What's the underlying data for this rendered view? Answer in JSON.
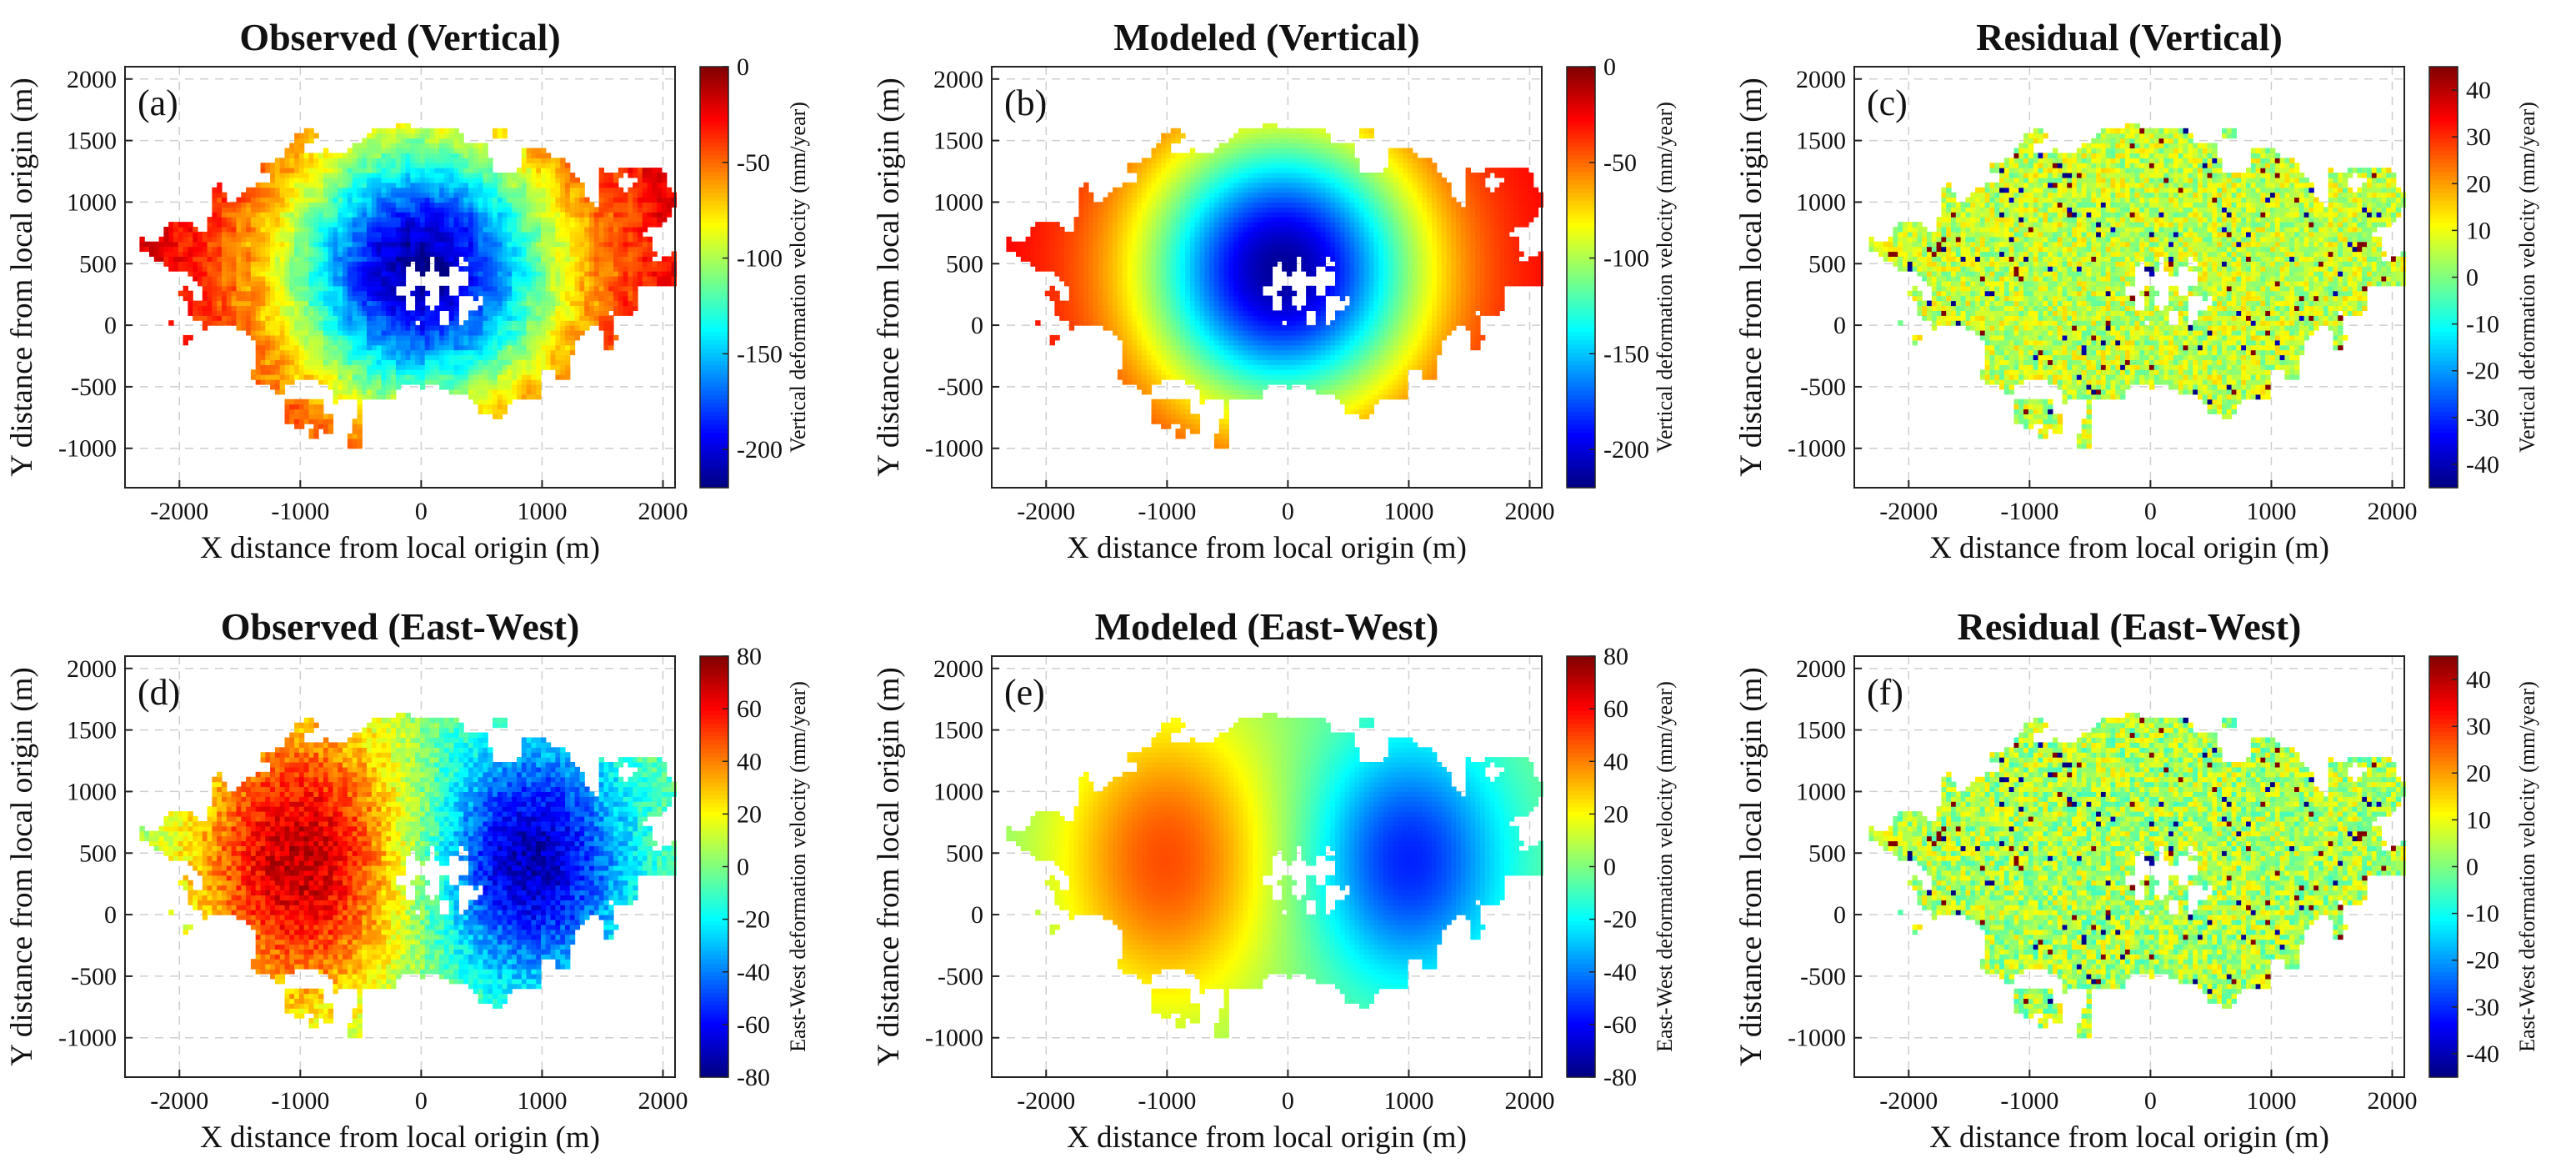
{
  "figure": {
    "xlabel": "X distance from local origin (m)",
    "ylabel": "Y distance from local origin (m)",
    "x_range": [
      -2450,
      2100
    ],
    "y_range": [
      -1320,
      2100
    ],
    "x_ticks": [
      -2000,
      -1000,
      0,
      1000,
      2000
    ],
    "y_ticks": [
      -1000,
      -500,
      0,
      500,
      1000,
      1500,
      2000
    ],
    "colormap": "jet",
    "background": "#ffffff"
  },
  "chart_data": [
    {
      "type": "heatmap",
      "panel": "(a)",
      "title": "Observed (Vertical)",
      "xlabel": "X distance from local origin (m)",
      "ylabel": "Y distance from local origin (m)",
      "xlim": [
        -2450,
        2100
      ],
      "ylim": [
        -1320,
        2100
      ],
      "colorbar": {
        "label": "Vertical deformation velocity (mm/year)",
        "range": [
          -220,
          0
        ],
        "ticks": [
          0,
          -50,
          -100,
          -150,
          -200
        ],
        "colormap": "jet"
      },
      "field": {
        "kind": "bowl",
        "center_x": 0,
        "center_y": 450,
        "peak_value": -215,
        "far_value": -20
      }
    },
    {
      "type": "heatmap",
      "panel": "(b)",
      "title": "Modeled (Vertical)",
      "xlabel": "X distance from local origin (m)",
      "ylabel": "Y distance from local origin (m)",
      "xlim": [
        -2450,
        2100
      ],
      "ylim": [
        -1320,
        2100
      ],
      "colorbar": {
        "label": "Vertical deformation velocity (mm/year)",
        "range": [
          -220,
          0
        ],
        "ticks": [
          0,
          -50,
          -100,
          -150,
          -200
        ],
        "colormap": "jet"
      },
      "field": {
        "kind": "bowl",
        "center_x": -50,
        "center_y": 450,
        "peak_value": -215,
        "far_value": -25
      }
    },
    {
      "type": "heatmap",
      "panel": "(c)",
      "title": "Residual (Vertical)",
      "xlabel": "X distance from local origin (m)",
      "ylabel": "Y distance from local origin (m)",
      "xlim": [
        -2450,
        2100
      ],
      "ylim": [
        -1320,
        2100
      ],
      "colorbar": {
        "label": "Vertical deformation velocity (mm/year)",
        "range": [
          -45,
          45
        ],
        "ticks": [
          40,
          30,
          20,
          10,
          0,
          -10,
          -20,
          -30,
          -40
        ],
        "colormap": "jet"
      },
      "field": {
        "kind": "noise",
        "mean_value": 6,
        "spread": 20
      }
    },
    {
      "type": "heatmap",
      "panel": "(d)",
      "title": "Observed (East-West)",
      "xlabel": "X distance from local origin (m)",
      "ylabel": "Y distance from local origin (m)",
      "xlim": [
        -2450,
        2100
      ],
      "ylim": [
        -1320,
        2100
      ],
      "colorbar": {
        "label": "East-West deformation velocity (mm/year)",
        "range": [
          -80,
          80
        ],
        "ticks": [
          80,
          60,
          40,
          20,
          0,
          -20,
          -40,
          -60,
          -80
        ],
        "colormap": "jet"
      },
      "field": {
        "kind": "dipole",
        "west_center_x": -1000,
        "east_center_x": 900,
        "center_y": 450,
        "west_value": 70,
        "east_value": -72,
        "noise": 10
      }
    },
    {
      "type": "heatmap",
      "panel": "(e)",
      "title": "Modeled (East-West)",
      "xlabel": "X distance from local origin (m)",
      "ylabel": "Y distance from local origin (m)",
      "xlim": [
        -2450,
        2100
      ],
      "ylim": [
        -1320,
        2100
      ],
      "colorbar": {
        "label": "East-West deformation velocity (mm/year)",
        "range": [
          -80,
          80
        ],
        "ticks": [
          80,
          60,
          40,
          20,
          0,
          -20,
          -40,
          -60,
          -80
        ],
        "colormap": "jet"
      },
      "field": {
        "kind": "dipole",
        "west_center_x": -1000,
        "east_center_x": 1000,
        "center_y": 450,
        "west_value": 48,
        "east_value": -55,
        "noise": 0
      }
    },
    {
      "type": "heatmap",
      "panel": "(f)",
      "title": "Residual (East-West)",
      "xlabel": "X distance from local origin (m)",
      "ylabel": "Y distance from local origin (m)",
      "xlim": [
        -2450,
        2100
      ],
      "ylim": [
        -1320,
        2100
      ],
      "colorbar": {
        "label": "East-West deformation velocity (mm/year)",
        "range": [
          -45,
          45
        ],
        "ticks": [
          40,
          30,
          20,
          10,
          0,
          -10,
          -20,
          -30,
          -40
        ],
        "colormap": "jet"
      },
      "field": {
        "kind": "noise",
        "mean_value": 4,
        "spread": 22
      }
    }
  ]
}
